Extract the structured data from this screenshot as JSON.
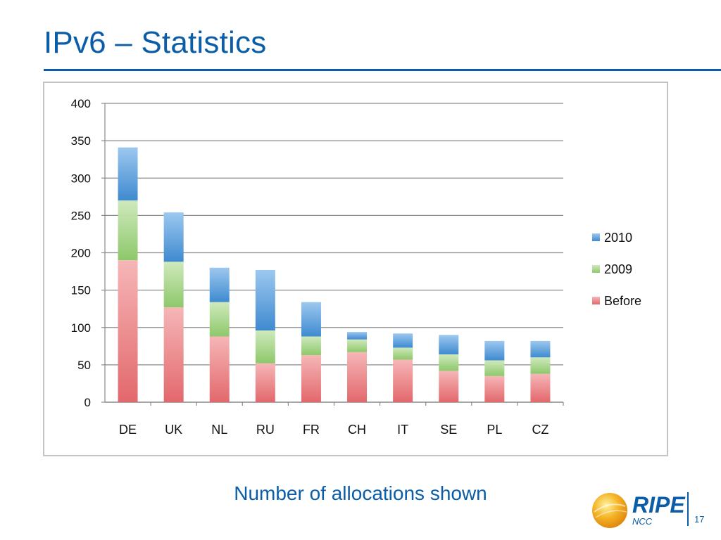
{
  "slide": {
    "title": "IPv6 – Statistics",
    "caption": "Number of allocations shown",
    "page_number": "17"
  },
  "logo": {
    "name": "RIPE",
    "subtitle": "NCC"
  },
  "colors": {
    "title": "#0b5da8",
    "before": "#5ea2dc",
    "y2009": "#ea7f82",
    "y2010": "#a5d586",
    "grid": "#8a8a8a"
  },
  "chart_data": {
    "type": "bar",
    "stacked": true,
    "categories": [
      "DE",
      "UK",
      "NL",
      "RU",
      "FR",
      "CH",
      "IT",
      "SE",
      "PL",
      "CZ"
    ],
    "series": [
      {
        "name": "Before",
        "values": [
          190,
          127,
          88,
          52,
          63,
          67,
          57,
          42,
          35,
          38
        ]
      },
      {
        "name": "2009",
        "values": [
          80,
          61,
          46,
          44,
          25,
          17,
          16,
          22,
          21,
          22
        ]
      },
      {
        "name": "2010",
        "values": [
          71,
          66,
          46,
          81,
          46,
          10,
          19,
          26,
          26,
          22
        ]
      }
    ],
    "ylim": [
      0,
      400
    ],
    "yticks": [
      "0",
      "50",
      "100",
      "150",
      "200",
      "250",
      "300",
      "350",
      "400"
    ],
    "grid": true,
    "legend_position": "right",
    "legend_order": [
      "2010",
      "2009",
      "Before"
    ]
  }
}
